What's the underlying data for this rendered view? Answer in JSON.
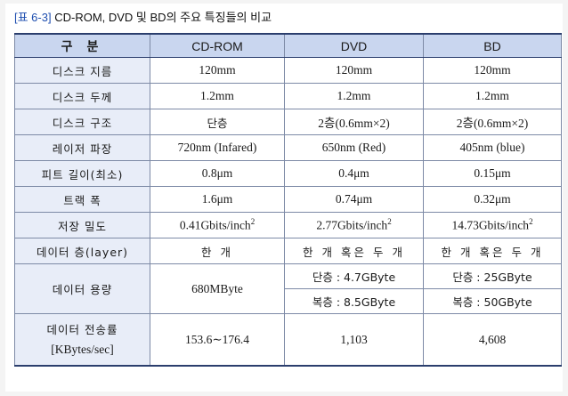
{
  "caption": {
    "tag": "[표 6-3]",
    "text": "CD-ROM, DVD 및 BD의 주요 특징들의 비교"
  },
  "headers": [
    "구 분",
    "CD-ROM",
    "DVD",
    "BD"
  ],
  "rows": [
    {
      "label": "디스크 지름",
      "cd": "120mm",
      "dvd": "120mm",
      "bd": "120mm"
    },
    {
      "label": "디스크 두께",
      "cd": "1.2mm",
      "dvd": "1.2mm",
      "bd": "1.2mm"
    },
    {
      "label": "디스크 구조",
      "cd": "단층",
      "dvd": "2층(0.6mm×2)",
      "bd": "2층(0.6mm×2)"
    },
    {
      "label": "레이저 파장",
      "cd": "720nm (Infared)",
      "dvd": "650nm (Red)",
      "bd": "405nm (blue)"
    },
    {
      "label": "피트 길이(최소)",
      "cd": "0.8μm",
      "dvd": "0.4μm",
      "bd": "0.15μm"
    },
    {
      "label": "트랙 폭",
      "cd": "1.6μm",
      "dvd": "0.74μm",
      "bd": "0.32μm"
    },
    {
      "label": "저장 밀도",
      "cd": "0.41Gbits/inch",
      "dvd": "2.77Gbits/inch",
      "bd": "14.73Gbits/inch",
      "sup": "2"
    },
    {
      "label": "데이터 층(layer)",
      "cd": "한 개",
      "dvd": "한 개 혹은 두 개",
      "bd": "한 개 혹은 두 개"
    },
    {
      "label": "데이터 용량",
      "cd": "680MByte",
      "dvd_a": "단층 : 4.7GByte",
      "dvd_b": "복층 : 8.5GByte",
      "bd_a": "단층 : 25GByte",
      "bd_b": "복층 : 50GByte"
    },
    {
      "label_l1": "데이터 전송률",
      "label_l2": "[KBytes/sec]",
      "cd": "153.6∼176.4",
      "dvd": "1,103",
      "bd": "4,608"
    }
  ]
}
